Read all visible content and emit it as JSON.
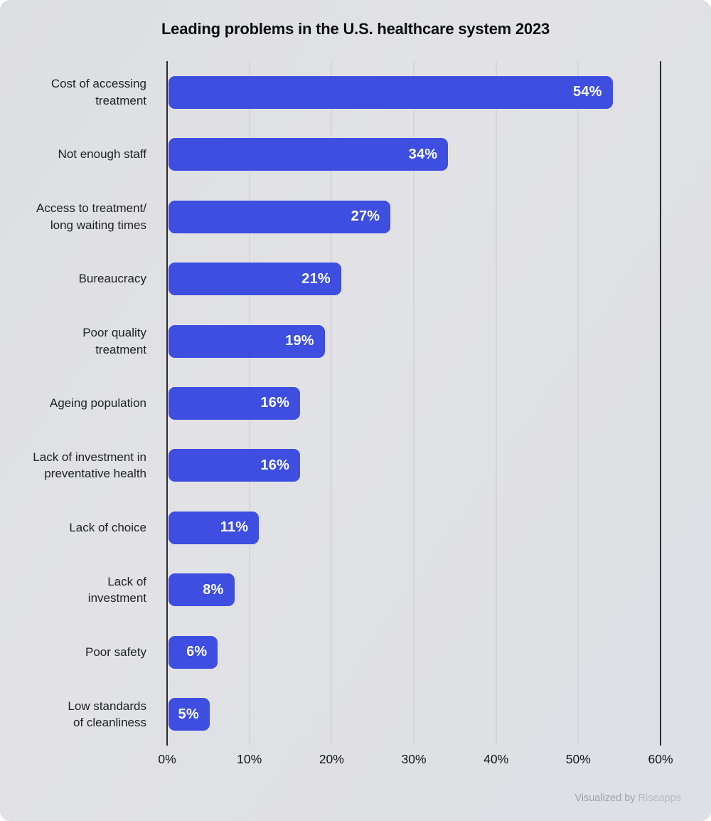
{
  "title": "Leading problems in the U.S. healthcare system 2023",
  "footer": {
    "visualized_by": "Visualized by ",
    "brand": "Riseapps"
  },
  "colors": {
    "bar": "#3d4ee1",
    "background": "#e0e1e5",
    "axis_line": "#2a2b30",
    "gridline": "#c9cacf",
    "value_label": "#ffffff"
  },
  "chart_data": {
    "type": "bar",
    "orientation": "horizontal",
    "title": "Leading problems in the U.S. healthcare system 2023",
    "xlabel": "",
    "ylabel": "",
    "xlim": [
      0,
      60
    ],
    "grid": true,
    "categories": [
      "Cost of accessing treatment",
      "Not enough staff",
      "Access to treatment/ long waiting times",
      "Bureaucracy",
      "Poor quality treatment",
      "Ageing population",
      "Lack of investment in preventative health",
      "Lack of choice",
      "Lack of investment",
      "Poor safety",
      "Low standards of cleanliness"
    ],
    "category_lines": [
      [
        "Cost of accessing",
        "treatment"
      ],
      [
        "Not enough staff"
      ],
      [
        "Access to treatment/",
        "long waiting times"
      ],
      [
        "Bureaucracy"
      ],
      [
        "Poor quality",
        "treatment"
      ],
      [
        "Ageing population"
      ],
      [
        "Lack of investment in",
        "preventative health"
      ],
      [
        "Lack of choice"
      ],
      [
        "Lack of",
        "investment"
      ],
      [
        "Poor safety"
      ],
      [
        "Low standards",
        "of cleanliness"
      ]
    ],
    "values": [
      54,
      34,
      27,
      21,
      19,
      16,
      16,
      11,
      8,
      6,
      5
    ],
    "value_labels": [
      "54%",
      "34%",
      "27%",
      "21%",
      "19%",
      "16%",
      "16%",
      "11%",
      "8%",
      "6%",
      "5%"
    ],
    "x_ticks": [
      "0%",
      "10%",
      "20%",
      "30%",
      "40%",
      "50%",
      "60%"
    ]
  }
}
